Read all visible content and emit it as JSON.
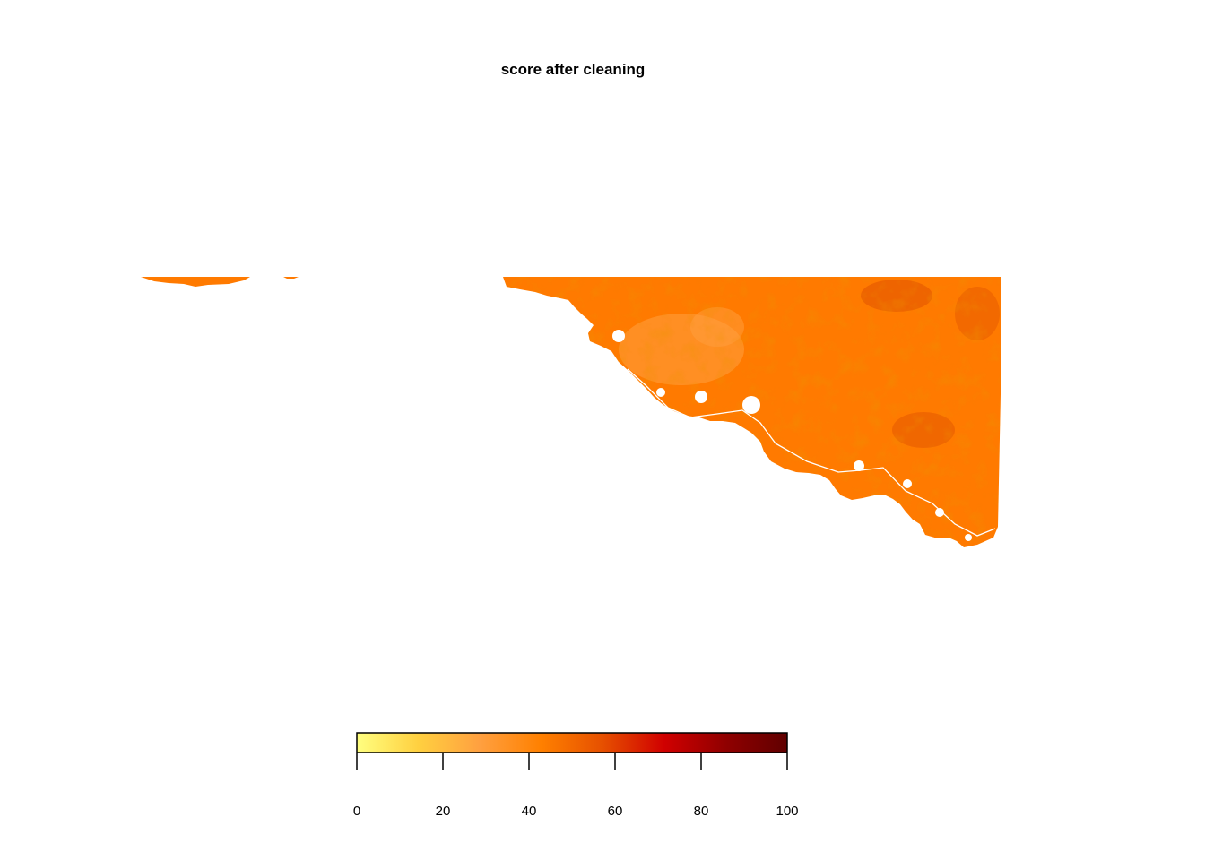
{
  "title": "score after cleaning",
  "map": {
    "fill_color": "#ff7a00",
    "dark_patch_color": "#d94a00",
    "light_patch_color": "#ffa040",
    "boundary_color": "#ffffff"
  },
  "legend": {
    "min": 0,
    "max": 100,
    "ticks": [
      0,
      20,
      40,
      60,
      80,
      100
    ],
    "palette": [
      "#ffff80",
      "#ffd040",
      "#ffa040",
      "#ff8000",
      "#e65000",
      "#d00000",
      "#900000",
      "#600000"
    ]
  }
}
